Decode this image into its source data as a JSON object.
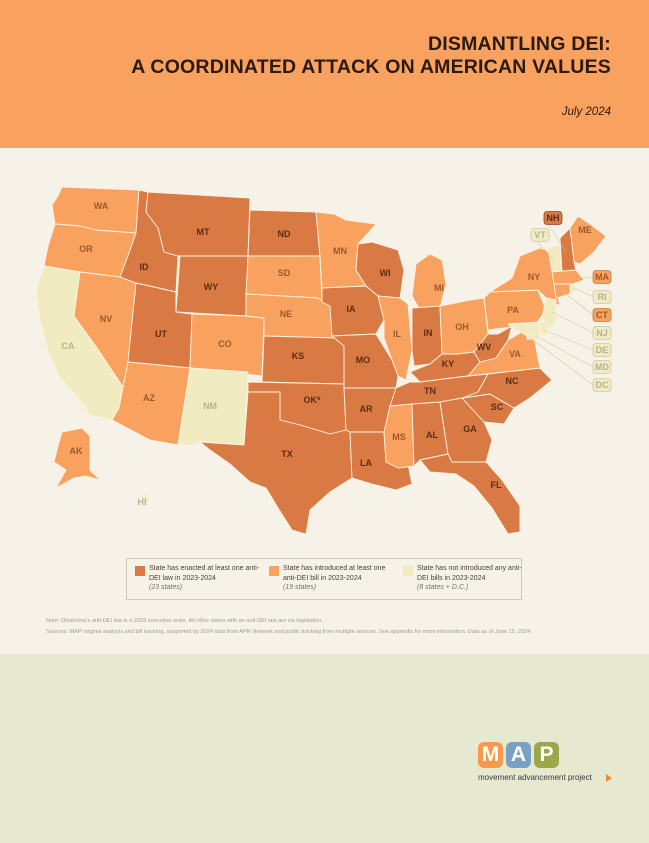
{
  "header": {
    "title_line1": "DISMANTLING DEI:",
    "title_line2": "A COORDINATED ATTACK ON AMERICAN VALUES",
    "date": "July 2024"
  },
  "colors": {
    "enacted": "#d97a45",
    "introduced": "#f9a15f",
    "none": "#f1ebc1",
    "border": "#fdf3e2",
    "header_bg": "#f9a15f",
    "page_bg": "#f6f2e8",
    "footer_bg": "#e6e8cf"
  },
  "map": {
    "states": {
      "WA": {
        "label": "WA",
        "status": "introduced"
      },
      "OR": {
        "label": "OR",
        "status": "introduced"
      },
      "CA": {
        "label": "CA",
        "status": "none"
      },
      "NV": {
        "label": "NV",
        "status": "introduced"
      },
      "ID": {
        "label": "ID",
        "status": "enacted"
      },
      "MT": {
        "label": "MT",
        "status": "enacted"
      },
      "WY": {
        "label": "WY",
        "status": "enacted"
      },
      "UT": {
        "label": "UT",
        "status": "enacted"
      },
      "AZ": {
        "label": "AZ",
        "status": "introduced"
      },
      "CO": {
        "label": "CO",
        "status": "introduced"
      },
      "NM": {
        "label": "NM",
        "status": "none"
      },
      "ND": {
        "label": "ND",
        "status": "enacted"
      },
      "SD": {
        "label": "SD",
        "status": "introduced"
      },
      "NE": {
        "label": "NE",
        "status": "introduced"
      },
      "KS": {
        "label": "KS",
        "status": "enacted"
      },
      "OK": {
        "label": "OK*",
        "status": "enacted"
      },
      "TX": {
        "label": "TX",
        "status": "enacted"
      },
      "MN": {
        "label": "MN",
        "status": "introduced"
      },
      "IA": {
        "label": "IA",
        "status": "enacted"
      },
      "MO": {
        "label": "MO",
        "status": "enacted"
      },
      "AR": {
        "label": "AR",
        "status": "enacted"
      },
      "LA": {
        "label": "LA",
        "status": "enacted"
      },
      "WI": {
        "label": "WI",
        "status": "enacted"
      },
      "IL": {
        "label": "IL",
        "status": "introduced"
      },
      "MI": {
        "label": "MI",
        "status": "introduced"
      },
      "IN": {
        "label": "IN",
        "status": "enacted"
      },
      "OH": {
        "label": "OH",
        "status": "introduced"
      },
      "KY": {
        "label": "KY",
        "status": "enacted"
      },
      "TN": {
        "label": "TN",
        "status": "enacted"
      },
      "MS": {
        "label": "MS",
        "status": "introduced"
      },
      "AL": {
        "label": "AL",
        "status": "enacted"
      },
      "GA": {
        "label": "GA",
        "status": "enacted"
      },
      "FL": {
        "label": "FL",
        "status": "enacted"
      },
      "SC": {
        "label": "SC",
        "status": "enacted"
      },
      "NC": {
        "label": "NC",
        "status": "enacted"
      },
      "VA": {
        "label": "VA",
        "status": "introduced"
      },
      "WV": {
        "label": "WV",
        "status": "enacted"
      },
      "PA": {
        "label": "PA",
        "status": "introduced"
      },
      "NY": {
        "label": "NY",
        "status": "introduced"
      },
      "ME": {
        "label": "ME",
        "status": "introduced"
      },
      "NH": {
        "label": "NH",
        "status": "enacted"
      },
      "VT": {
        "label": "VT",
        "status": "none"
      },
      "MA": {
        "label": "MA",
        "status": "introduced"
      },
      "RI": {
        "label": "RI",
        "status": "none"
      },
      "CT": {
        "label": "CT",
        "status": "introduced"
      },
      "NJ": {
        "label": "NJ",
        "status": "none"
      },
      "DE": {
        "label": "DE",
        "status": "none"
      },
      "MD": {
        "label": "MD",
        "status": "none"
      },
      "DC": {
        "label": "DC",
        "status": "none"
      },
      "AK": {
        "label": "AK",
        "status": "introduced"
      },
      "HI": {
        "label": "HI",
        "status": "none"
      }
    }
  },
  "legend": {
    "enacted": {
      "text": "State has enacted at least one anti-DEI law in 2023-2024",
      "count": "(23 states)"
    },
    "introduced": {
      "text": "State has introduced at least one anti-DEI bill in 2023-2024",
      "count": "(19 states)"
    },
    "none": {
      "text": "State has not introduced any anti-DEI bills in 2023-2024",
      "count": "(8 states + D.C.)"
    }
  },
  "notes": {
    "note": "Note: Oklahoma's anti-DEI law is a 2023 executive order. All other states with an anti-DEI law are via legislation.",
    "sources": "Sources: MAP original analysis and bill tracking, supported by 2024 data from APR Network and public tracking from multiple sources. See appendix for more information. Data as of June 15, 2024."
  },
  "logo": {
    "letters": [
      "M",
      "A",
      "P"
    ],
    "letter_colors": [
      "#f59a4e",
      "#7aa0c4",
      "#9aa84b"
    ],
    "tagline": "movement advancement project"
  }
}
